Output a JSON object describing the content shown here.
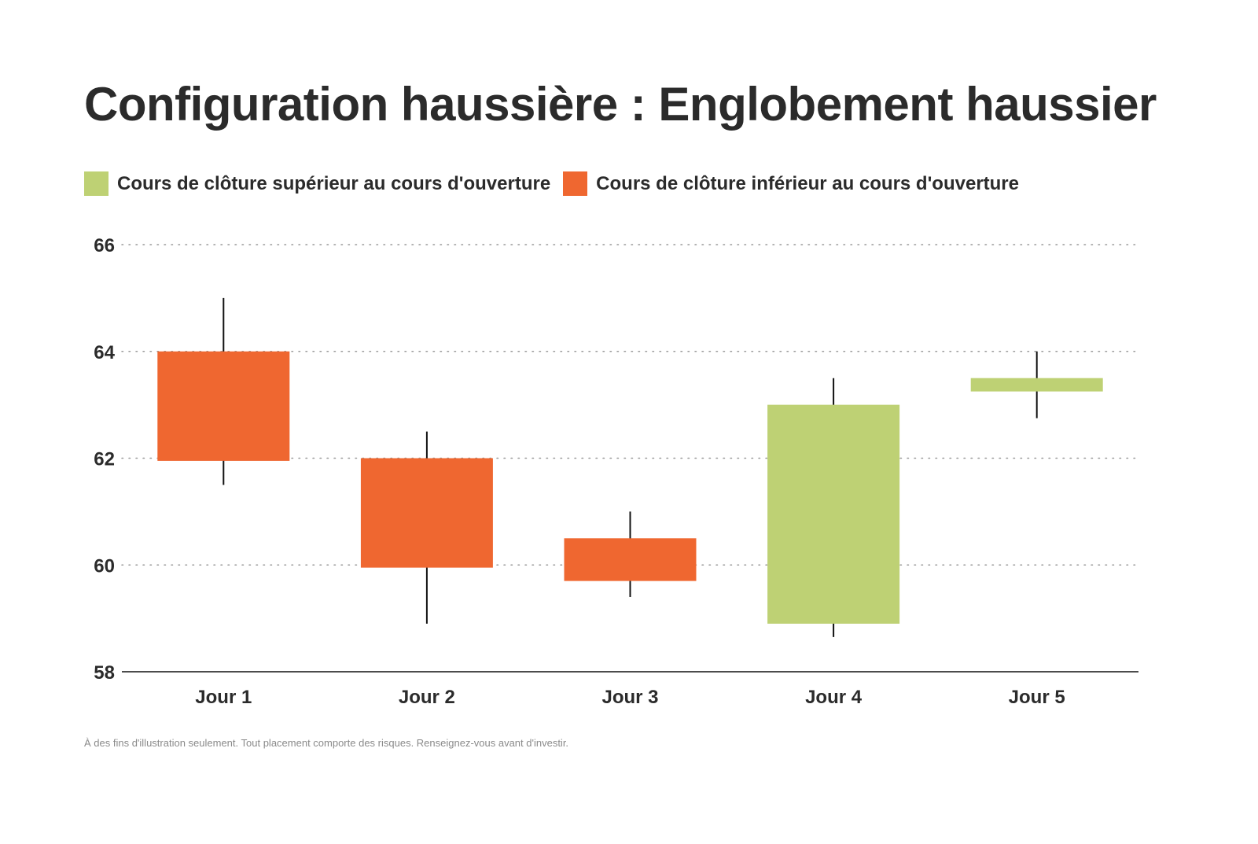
{
  "chart_data": {
    "type": "candlestick",
    "title": "Configuration haussière : Englobement haussier",
    "categories": [
      "Jour 1",
      "Jour 2",
      "Jour 3",
      "Jour 4",
      "Jour 5"
    ],
    "series": [
      {
        "open": 64.0,
        "close": 61.95,
        "high": 65.0,
        "low": 61.5
      },
      {
        "open": 62.0,
        "close": 59.95,
        "high": 62.5,
        "low": 58.9
      },
      {
        "open": 60.5,
        "close": 59.7,
        "high": 61.0,
        "low": 59.4
      },
      {
        "open": 58.9,
        "close": 63.0,
        "high": 63.5,
        "low": 58.65
      },
      {
        "open": 63.25,
        "close": 63.5,
        "high": 64.0,
        "low": 62.75
      }
    ],
    "ylim": [
      58,
      66
    ],
    "yticks": [
      58,
      60,
      62,
      64,
      66
    ],
    "grid": true,
    "legend_placement": "top-left",
    "legend": [
      {
        "label": "Cours de clôture supérieur au cours d'ouverture",
        "color": "#BED174"
      },
      {
        "label": "Cours de clôture inférieur au cours d'ouverture",
        "color": "#EF6730"
      }
    ],
    "colors": {
      "up": "#BED174",
      "down": "#EF6730",
      "wick": "#111111"
    }
  },
  "footnote": "À des fins d'illustration seulement. Tout placement comporte des risques. Renseignez-vous avant d'investir."
}
